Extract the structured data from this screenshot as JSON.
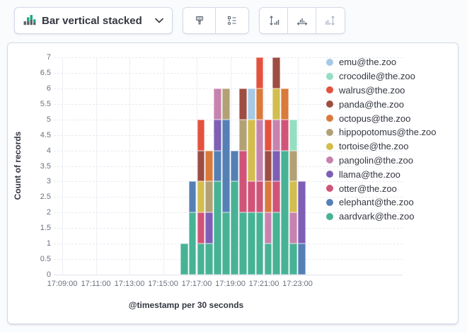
{
  "toolbar": {
    "chart_type_label": "Bar vertical stacked",
    "buttons": [
      {
        "name": "style-brush"
      },
      {
        "name": "legend-settings"
      },
      {
        "name": "left-axis-settings"
      },
      {
        "name": "bottom-axis-settings"
      },
      {
        "name": "right-axis-settings-disabled"
      }
    ],
    "icon_colors": {
      "green": "#1ba87e",
      "gray": "#5a6069",
      "stroke": "#5d6673",
      "disabled": "#a9b4c6"
    }
  },
  "chart_data": {
    "type": "bar",
    "stacked": true,
    "ylabel": "Count of records",
    "xlabel": "@timestamp per 30 seconds",
    "ylim": [
      0,
      7
    ],
    "y_tick_step": 0.5,
    "grid": true,
    "legend_position": "right",
    "x_ticks": [
      "17:09:00",
      "17:11:00",
      "17:13:00",
      "17:15:00",
      "17:17:00",
      "17:19:00",
      "17:21:00",
      "17:23:00"
    ],
    "categories": [
      "17:16:00",
      "17:16:30",
      "17:17:00",
      "17:17:30",
      "17:18:00",
      "17:18:30",
      "17:19:00",
      "17:19:30",
      "17:20:00",
      "17:20:30",
      "17:21:00",
      "17:21:30",
      "17:22:00",
      "17:22:30",
      "17:23:00"
    ],
    "series": [
      {
        "name": "aardvark@the.zoo",
        "color": "#48b295",
        "values": [
          1,
          2,
          1,
          1,
          3,
          2,
          3,
          2,
          2,
          2,
          1,
          2,
          4,
          1,
          0
        ]
      },
      {
        "name": "elephant@the.zoo",
        "color": "#5580b5",
        "values": [
          0,
          1,
          0,
          0,
          1,
          3,
          1,
          0,
          0,
          0,
          0,
          0,
          0,
          0,
          1
        ]
      },
      {
        "name": "otter@the.zoo",
        "color": "#d05478",
        "values": [
          0,
          0,
          1,
          0,
          0,
          0,
          0,
          2,
          1,
          1,
          0,
          1,
          1,
          0,
          0
        ]
      },
      {
        "name": "llama@the.zoo",
        "color": "#7e5fb5",
        "values": [
          0,
          0,
          0,
          1,
          1,
          0,
          0,
          0,
          0,
          0,
          0,
          1,
          0,
          0,
          2
        ]
      },
      {
        "name": "pangolin@the.zoo",
        "color": "#c783ae",
        "values": [
          0,
          0,
          0,
          0,
          1,
          0,
          0,
          0,
          0,
          2,
          1,
          1,
          0,
          1,
          0
        ]
      },
      {
        "name": "tortoise@the.zoo",
        "color": "#d3bd4f",
        "values": [
          0,
          0,
          1,
          0,
          0,
          0,
          0,
          0,
          2,
          0,
          0,
          1,
          0,
          1,
          0
        ]
      },
      {
        "name": "hippopotomus@the.zoo",
        "color": "#b3a176",
        "values": [
          0,
          0,
          0,
          1,
          0,
          1,
          0,
          1,
          0,
          0,
          0,
          0,
          0,
          1,
          0
        ]
      },
      {
        "name": "octopus@the.zoo",
        "color": "#d97a3b",
        "values": [
          0,
          0,
          0,
          1,
          0,
          0,
          0,
          0,
          0,
          1,
          1,
          0,
          1,
          0,
          0
        ]
      },
      {
        "name": "panda@the.zoo",
        "color": "#9e4d42",
        "values": [
          0,
          0,
          1,
          0,
          0,
          0,
          0,
          1,
          0,
          0,
          1,
          1,
          0,
          0,
          0
        ]
      },
      {
        "name": "walrus@the.zoo",
        "color": "#e4513e",
        "values": [
          0,
          0,
          1,
          0,
          0,
          0,
          0,
          0,
          0,
          1,
          1,
          0,
          0,
          0,
          0
        ]
      },
      {
        "name": "crocodile@the.zoo",
        "color": "#96dec2",
        "values": [
          0,
          0,
          0,
          0,
          0,
          0,
          0,
          0,
          0,
          0,
          0,
          0,
          0,
          1,
          0
        ]
      },
      {
        "name": "emu@the.zoo",
        "color": "#a6c9e8",
        "values": [
          0,
          0,
          0,
          0,
          0,
          0,
          0,
          0,
          1,
          0,
          0,
          0,
          0,
          0,
          0
        ]
      }
    ]
  }
}
